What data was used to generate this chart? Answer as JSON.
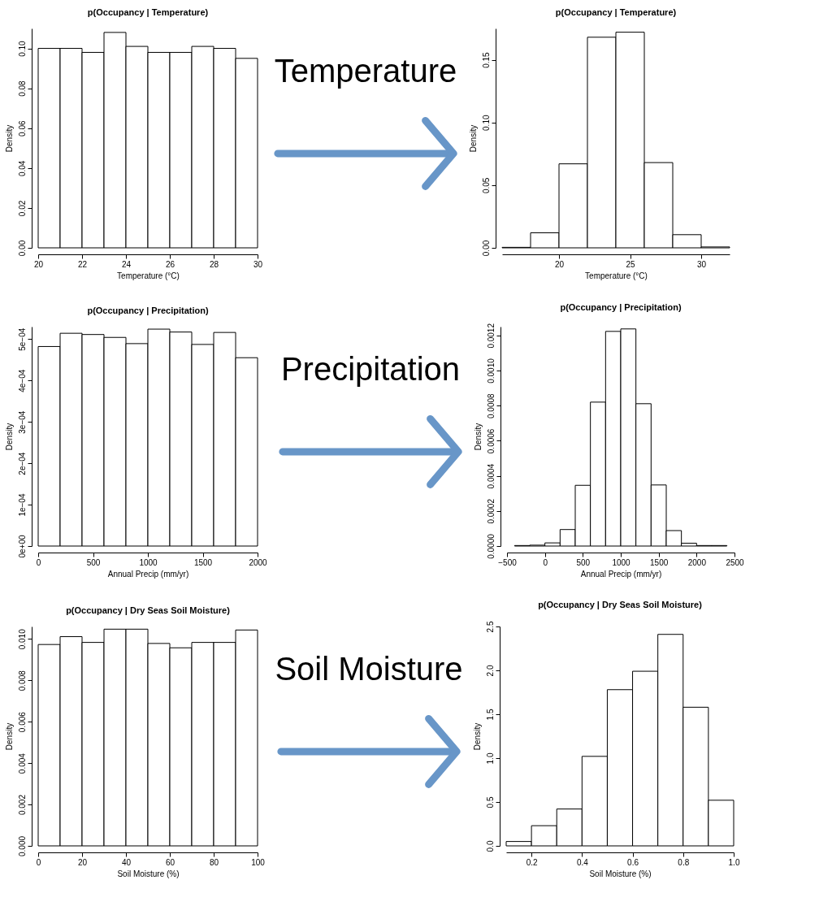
{
  "chart_data": [
    {
      "type": "histogram",
      "title": "p(Occupancy | Temperature)",
      "xlabel": "Temperature (°C)",
      "ylabel": "Density",
      "color": "#ffffff",
      "bins": [
        20,
        21,
        22,
        23,
        24,
        25,
        26,
        27,
        28,
        29,
        30
      ],
      "values": [
        0.1,
        0.1,
        0.098,
        0.108,
        0.101,
        0.098,
        0.098,
        0.101,
        0.1,
        0.095
      ],
      "xlim": [
        20,
        30
      ],
      "ylim": [
        0,
        0.11
      ],
      "xticks": [
        20,
        22,
        24,
        26,
        28,
        30
      ],
      "yticks": [
        {
          "value": 0,
          "label": "0.00"
        },
        {
          "value": 0.02,
          "label": "0.02"
        },
        {
          "value": 0.04,
          "label": "0.04"
        },
        {
          "value": 0.06,
          "label": "0.06"
        },
        {
          "value": 0.08,
          "label": "0.08"
        },
        {
          "value": 0.1,
          "label": "0.10"
        }
      ]
    },
    {
      "type": "other",
      "annotations": [
        "Temperature"
      ]
    },
    {
      "type": "histogram",
      "title": "p(Occupancy | Temperature)",
      "xlabel": "Temperature (°C)",
      "ylabel": "Density",
      "color": "#ffffff",
      "bins": [
        16,
        18,
        20,
        22,
        24,
        26,
        28,
        30,
        32
      ],
      "values": [
        0.0004,
        0.012,
        0.067,
        0.168,
        0.172,
        0.068,
        0.0105,
        0.0007
      ],
      "xlim": [
        16,
        32
      ],
      "ylim": [
        0,
        0.175
      ],
      "xticks": [
        20,
        25,
        30
      ],
      "yticks": [
        {
          "value": 0,
          "label": "0.00"
        },
        {
          "value": 0.05,
          "label": "0.05"
        },
        {
          "value": 0.1,
          "label": "0.10"
        },
        {
          "value": 0.15,
          "label": "0.15"
        }
      ]
    },
    {
      "type": "histogram",
      "title": "p(Occupancy | Precipitation)",
      "xlabel": "Annual Precip (mm/yr)",
      "ylabel": "Density",
      "color": "#ffffff",
      "bins": [
        0,
        200,
        400,
        600,
        800,
        1000,
        1200,
        1400,
        1600,
        1800,
        2000
      ],
      "values": [
        0.000482,
        0.000514,
        0.000511,
        0.000504,
        0.000489,
        0.000524,
        0.000517,
        0.000487,
        0.000516,
        0.000455
      ],
      "xlim": [
        0,
        2000
      ],
      "ylim": [
        0,
        0.00053
      ],
      "xticks": [
        0,
        500,
        1000,
        1500,
        2000
      ],
      "yticks": [
        {
          "value": 0,
          "label": "0e+00"
        },
        {
          "value": 0.0001,
          "label": "1e−04"
        },
        {
          "value": 0.0002,
          "label": "2e−04"
        },
        {
          "value": 0.0003,
          "label": "3e−04"
        },
        {
          "value": 0.0004,
          "label": "4e−04"
        },
        {
          "value": 0.0005,
          "label": "5e−04"
        }
      ]
    },
    {
      "type": "other",
      "annotations": [
        "Precipitation"
      ]
    },
    {
      "type": "histogram",
      "title": "p(Occupancy | Precipitation)",
      "xlabel": "Annual Precip (mm/yr)",
      "ylabel": "Density",
      "color": "#ffffff",
      "bins": [
        -400,
        -200,
        0,
        200,
        400,
        600,
        800,
        1000,
        1200,
        1400,
        1600,
        1800,
        2000,
        2200,
        2400
      ],
      "values": [
        3e-06,
        5e-06,
        1.8e-05,
        9.4e-05,
        0.000346,
        0.00082,
        0.001223,
        0.001237,
        0.000811,
        0.000348,
        8.8e-05,
        1.6e-05,
        3e-06,
        3e-06
      ],
      "xlim": [
        -500,
        2500
      ],
      "ylim": [
        0,
        0.00125
      ],
      "xticks": [
        {
          "value": -500,
          "label": "−500"
        },
        0,
        500,
        1000,
        1500,
        2000,
        2500
      ],
      "yticks": [
        {
          "value": 0,
          "label": "0.0000"
        },
        {
          "value": 0.0002,
          "label": "0.0002"
        },
        {
          "value": 0.0004,
          "label": "0.0004"
        },
        {
          "value": 0.0006,
          "label": "0.0006"
        },
        {
          "value": 0.0008,
          "label": "0.0008"
        },
        {
          "value": 0.001,
          "label": "0.0010"
        },
        {
          "value": 0.0012,
          "label": "0.0012"
        }
      ]
    },
    {
      "type": "histogram",
      "title": "p(Occupancy | Dry Seas Soil Moisture)",
      "xlabel": "Soil Moisture (%)",
      "ylabel": "Density",
      "color": "#ffffff",
      "bins": [
        0,
        10,
        20,
        30,
        40,
        50,
        60,
        70,
        80,
        90,
        100
      ],
      "values": [
        0.00973,
        0.01011,
        0.00983,
        0.01047,
        0.01047,
        0.00978,
        0.00957,
        0.00983,
        0.00983,
        0.01043
      ],
      "xlim": [
        0,
        100
      ],
      "ylim": [
        0,
        0.0106
      ],
      "xticks": [
        0,
        20,
        40,
        60,
        80,
        100
      ],
      "yticks": [
        {
          "value": 0,
          "label": "0.000"
        },
        {
          "value": 0.002,
          "label": "0.002"
        },
        {
          "value": 0.004,
          "label": "0.004"
        },
        {
          "value": 0.006,
          "label": "0.006"
        },
        {
          "value": 0.008,
          "label": "0.008"
        },
        {
          "value": 0.01,
          "label": "0.010"
        }
      ]
    },
    {
      "type": "other",
      "annotations": [
        "Soil Moisture"
      ]
    },
    {
      "type": "histogram",
      "title": "p(Occupancy | Dry Seas Soil Moisture)",
      "xlabel": "Soil Moisture (%)",
      "ylabel": "Density",
      "color": "#ffffff",
      "bins": [
        0.1,
        0.2,
        0.3,
        0.4,
        0.5,
        0.6,
        0.7,
        0.8,
        0.9,
        1.0
      ],
      "values": [
        0.05,
        0.23,
        0.42,
        1.02,
        1.78,
        1.99,
        2.41,
        1.58,
        0.52
      ],
      "xlim": [
        0.1,
        1.0
      ],
      "ylim": [
        0,
        2.5
      ],
      "xticks": [
        0.2,
        0.4,
        0.6,
        0.8,
        {
          "value": 1.0,
          "label": "1.0"
        }
      ],
      "yticks": [
        {
          "value": 0,
          "label": "0.0"
        },
        0.5,
        {
          "value": 1.0,
          "label": "1.0"
        },
        1.5,
        {
          "value": 2.0,
          "label": "2.0"
        },
        2.5
      ]
    }
  ]
}
